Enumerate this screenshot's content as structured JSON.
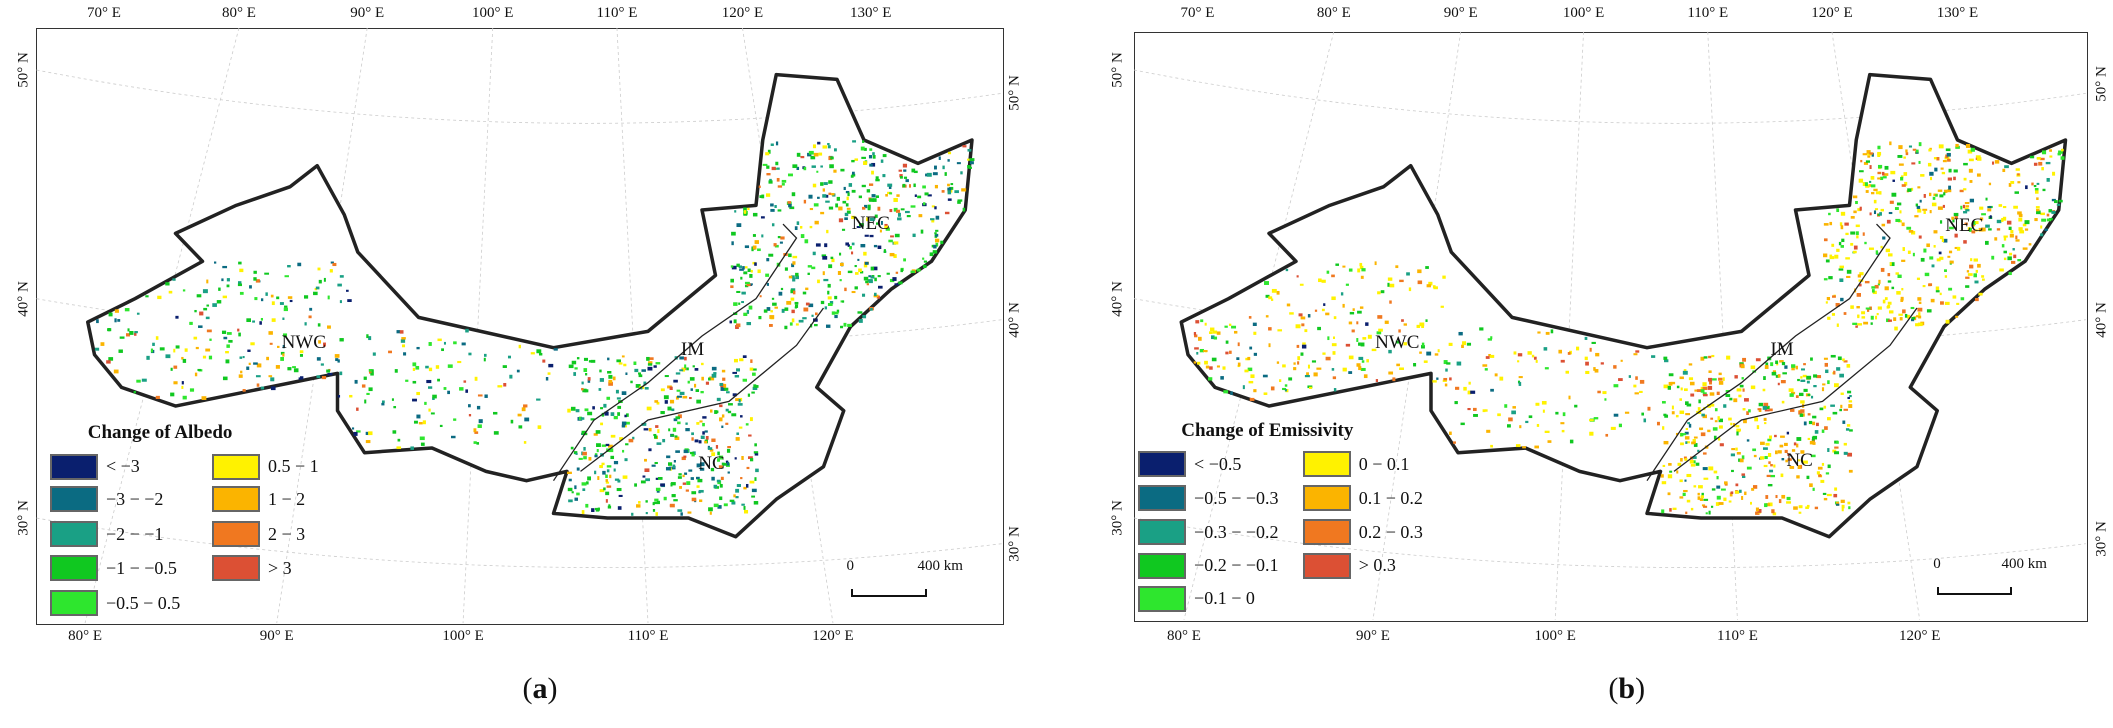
{
  "panels": [
    {
      "id": "a",
      "label_open": "(",
      "label_letter": "a",
      "label_close": ")",
      "legend_title": "Change of Albedo",
      "legend": [
        {
          "label": "< −3",
          "color": "#0a1f6e"
        },
        {
          "label": "−3 − −2",
          "color": "#0b6b82"
        },
        {
          "label": "−2 − −1",
          "color": "#1aa085"
        },
        {
          "label": "−1 − −0.5",
          "color": "#10c820"
        },
        {
          "label": "−0.5 − 0.5",
          "color": "#2ee62e"
        },
        {
          "label": "0.5 − 1",
          "color": "#fff200"
        },
        {
          "label": "1 − 2",
          "color": "#fbb400"
        },
        {
          "label": "2 − 3",
          "color": "#f07820"
        },
        {
          "label": "> 3",
          "color": "#dc5034"
        }
      ],
      "regions": [
        "NWC",
        "IM",
        "NEC",
        "NC"
      ],
      "scale": {
        "zero": "0",
        "end": "400 km"
      },
      "top_lon": [
        "70° E",
        "80° E",
        "90° E",
        "100° E",
        "110° E",
        "120° E",
        "130° E"
      ],
      "bottom_lon": [
        "80° E",
        "90° E",
        "100° E",
        "110° E",
        "120° E"
      ],
      "left_lat": [
        "50° N",
        "40° N",
        "30° N"
      ],
      "right_lat": [
        "50° N",
        "40° N",
        "30° N"
      ]
    },
    {
      "id": "b",
      "label_open": "(",
      "label_letter": "b",
      "label_close": ")",
      "legend_title": "Change of Emissivity",
      "legend": [
        {
          "label": "< −0.5",
          "color": "#0a1f6e"
        },
        {
          "label": "−0.5 − −0.3",
          "color": "#0b6b82"
        },
        {
          "label": "−0.3 − −0.2",
          "color": "#1aa085"
        },
        {
          "label": "−0.2 − −0.1",
          "color": "#10c820"
        },
        {
          "label": "−0.1 − 0",
          "color": "#2ee62e"
        },
        {
          "label": "0 − 0.1",
          "color": "#fff200"
        },
        {
          "label": "0.1 − 0.2",
          "color": "#fbb400"
        },
        {
          "label": "0.2 − 0.3",
          "color": "#f07820"
        },
        {
          "label": "> 0.3",
          "color": "#dc5034"
        }
      ],
      "regions": [
        "NWC",
        "IM",
        "NEC",
        "NC"
      ],
      "scale": {
        "zero": "0",
        "end": "400 km"
      },
      "top_lon": [
        "70° E",
        "80° E",
        "90° E",
        "100° E",
        "110° E",
        "120° E",
        "130° E"
      ],
      "bottom_lon": [
        "80° E",
        "90° E",
        "100° E",
        "110° E",
        "120° E"
      ],
      "left_lat": [
        "50° N",
        "40° N",
        "30° N"
      ],
      "right_lat": [
        "50° N",
        "40° N",
        "30° N"
      ]
    }
  ]
}
